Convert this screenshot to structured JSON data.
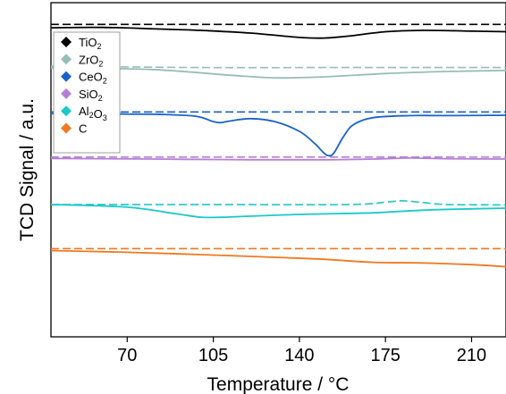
{
  "chart_data": {
    "type": "line",
    "xlabel": "Temperature / °C",
    "ylabel": "TCD Signal / a.u.",
    "xlim": [
      39,
      224
    ],
    "ylim": [
      0,
      100
    ],
    "x_ticks": [
      70,
      105,
      140,
      175,
      210
    ],
    "y_ticks_shown": false,
    "grid": false,
    "legend_position": "top-left",
    "legend": [
      {
        "base": "TiO",
        "sub": "2",
        "tail": "",
        "color": "#000000"
      },
      {
        "base": "ZrO",
        "sub": "2",
        "tail": "",
        "color": "#98bdb6"
      },
      {
        "base": "CeO",
        "sub": "2",
        "tail": "",
        "color": "#1a62c8"
      },
      {
        "base": "SiO",
        "sub": "2",
        "tail": "",
        "color": "#b57fd6"
      },
      {
        "base": "Al",
        "sub": "2",
        "tail": "O",
        "sub2": "3",
        "color": "#1cc8c8"
      },
      {
        "base": "C",
        "sub": "",
        "tail": "",
        "color": "#f0781f"
      }
    ],
    "series": [
      {
        "color": "#000000",
        "solid": [
          [
            39,
            92.5
          ],
          [
            60,
            92.6
          ],
          [
            80,
            92.2
          ],
          [
            100,
            91.7
          ],
          [
            120,
            90.9
          ],
          [
            140,
            89.6
          ],
          [
            150,
            89.4
          ],
          [
            160,
            90.0
          ],
          [
            175,
            91.3
          ],
          [
            190,
            91.7
          ],
          [
            210,
            91.5
          ],
          [
            224,
            91.3
          ]
        ],
        "dashed": [
          [
            39,
            93.5
          ],
          [
            100,
            93.5
          ],
          [
            150,
            93.5
          ],
          [
            224,
            93.5
          ]
        ]
      },
      {
        "color": "#98bdb6",
        "solid": [
          [
            39,
            80.5
          ],
          [
            80,
            80.0
          ],
          [
            110,
            78.4
          ],
          [
            130,
            77.5
          ],
          [
            150,
            77.8
          ],
          [
            175,
            78.8
          ],
          [
            200,
            79.4
          ],
          [
            224,
            79.7
          ]
        ],
        "dashed": [
          [
            39,
            81.0
          ],
          [
            100,
            80.6
          ],
          [
            150,
            80.6
          ],
          [
            224,
            80.6
          ]
        ]
      },
      {
        "color": "#1a62c8",
        "solid": [
          [
            39,
            66.8
          ],
          [
            80,
            66.6
          ],
          [
            95,
            66.2
          ],
          [
            100,
            65.7
          ],
          [
            105,
            64.4
          ],
          [
            108,
            64.1
          ],
          [
            112,
            64.6
          ],
          [
            120,
            65.3
          ],
          [
            130,
            64.4
          ],
          [
            140,
            61.5
          ],
          [
            146,
            58.0
          ],
          [
            150,
            55.0
          ],
          [
            152,
            54.2
          ],
          [
            154,
            55.0
          ],
          [
            158,
            60.0
          ],
          [
            162,
            63.5
          ],
          [
            170,
            65.6
          ],
          [
            185,
            66.2
          ],
          [
            200,
            66.2
          ],
          [
            224,
            66.3
          ]
        ],
        "dashed": [
          [
            39,
            67.3
          ],
          [
            100,
            67.3
          ],
          [
            150,
            67.3
          ],
          [
            224,
            67.3
          ]
        ]
      },
      {
        "color": "#b57fd6",
        "solid": [
          [
            39,
            53.4
          ],
          [
            80,
            53.2
          ],
          [
            120,
            53.0
          ],
          [
            150,
            53.0
          ],
          [
            170,
            53.2
          ],
          [
            185,
            53.5
          ],
          [
            200,
            53.3
          ],
          [
            224,
            53.2
          ]
        ],
        "dashed": [
          [
            39,
            53.8
          ],
          [
            100,
            53.8
          ],
          [
            150,
            53.8
          ],
          [
            224,
            53.8
          ]
        ]
      },
      {
        "color": "#1cc8c8",
        "solid": [
          [
            39,
            39.6
          ],
          [
            70,
            38.8
          ],
          [
            90,
            36.8
          ],
          [
            100,
            35.8
          ],
          [
            110,
            35.8
          ],
          [
            130,
            36.4
          ],
          [
            150,
            36.8
          ],
          [
            170,
            37.1
          ],
          [
            190,
            37.9
          ],
          [
            210,
            38.3
          ],
          [
            224,
            38.5
          ]
        ],
        "dashed": [
          [
            39,
            39.6
          ],
          [
            100,
            39.6
          ],
          [
            160,
            39.6
          ],
          [
            175,
            40.3
          ],
          [
            182,
            40.7
          ],
          [
            190,
            40.2
          ],
          [
            200,
            39.6
          ],
          [
            224,
            39.5
          ]
        ]
      },
      {
        "color": "#f0781f",
        "solid": [
          [
            39,
            25.8
          ],
          [
            70,
            25.3
          ],
          [
            100,
            24.6
          ],
          [
            130,
            23.8
          ],
          [
            150,
            23.2
          ],
          [
            170,
            22.3
          ],
          [
            190,
            22.1
          ],
          [
            210,
            21.6
          ],
          [
            224,
            21.0
          ]
        ],
        "dashed": [
          [
            39,
            26.4
          ],
          [
            100,
            26.4
          ],
          [
            150,
            26.4
          ],
          [
            224,
            26.4
          ]
        ]
      }
    ]
  }
}
